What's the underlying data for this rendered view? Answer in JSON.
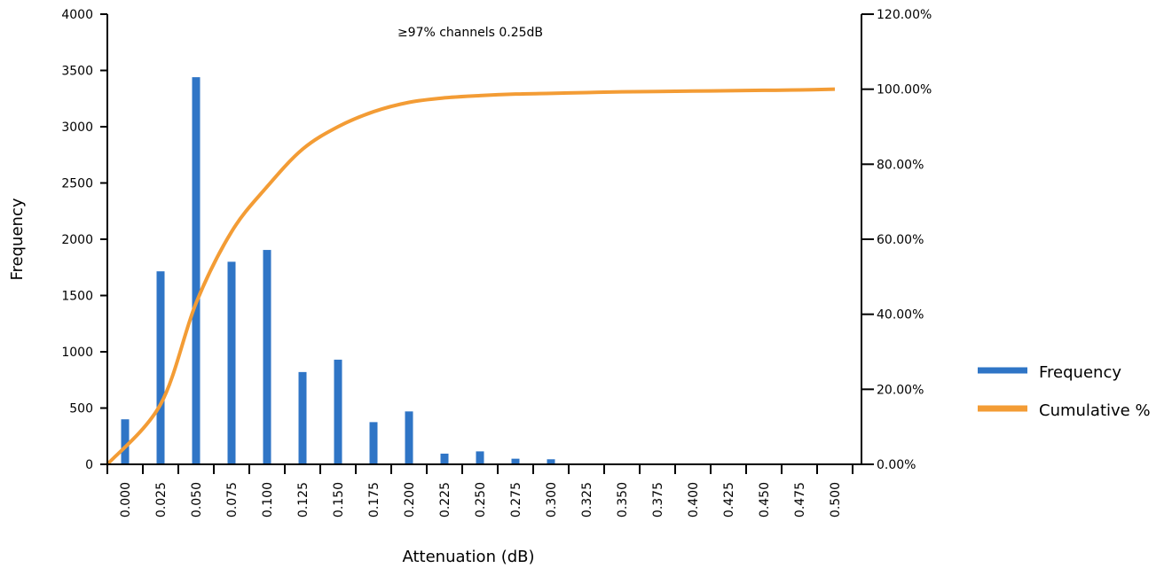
{
  "chart_data": {
    "type": "bar+line",
    "annotation": "≥97% channels 0.25dB",
    "xlabel": "Attenuation (dB)",
    "ylabel": "Frequency",
    "categories": [
      "0.000",
      "0.025",
      "0.050",
      "0.075",
      "0.100",
      "0.125",
      "0.150",
      "0.175",
      "0.200",
      "0.225",
      "0.250",
      "0.275",
      "0.300",
      "0.325",
      "0.350",
      "0.375",
      "0.400",
      "0.425",
      "0.450",
      "0.475",
      "0.500"
    ],
    "ylim": [
      0,
      4000
    ],
    "y_ticks": [
      0,
      500,
      1000,
      1500,
      2000,
      2500,
      3000,
      3500,
      4000
    ],
    "y2lim": [
      0,
      120
    ],
    "y2_ticks": [
      "0.00%",
      "20.00%",
      "40.00%",
      "60.00%",
      "80.00%",
      "100.00%",
      "120.00%"
    ],
    "legend_position": "right",
    "series": [
      {
        "name": "Frequency",
        "type": "bar",
        "axis": "left",
        "color": "#2f75c6",
        "values": [
          400,
          1715,
          3440,
          1800,
          1905,
          820,
          930,
          375,
          470,
          95,
          115,
          50,
          45,
          0,
          0,
          0,
          0,
          0,
          0,
          0,
          0
        ]
      },
      {
        "name": "Cumulative %",
        "type": "line",
        "axis": "right",
        "color": "#f39c35",
        "x": [
          0.0,
          0.025,
          0.05,
          0.075,
          0.1,
          0.125,
          0.15,
          0.175,
          0.2,
          0.225,
          0.25,
          0.275,
          0.3,
          0.325,
          0.35,
          0.375,
          0.4,
          0.425,
          0.45,
          0.475,
          0.5
        ],
        "values": [
          0,
          16,
          43,
          62,
          74,
          84,
          90,
          94,
          96.5,
          97.7,
          98.3,
          98.7,
          98.9,
          99.1,
          99.3,
          99.4,
          99.5,
          99.6,
          99.7,
          99.8,
          100
        ]
      }
    ]
  }
}
